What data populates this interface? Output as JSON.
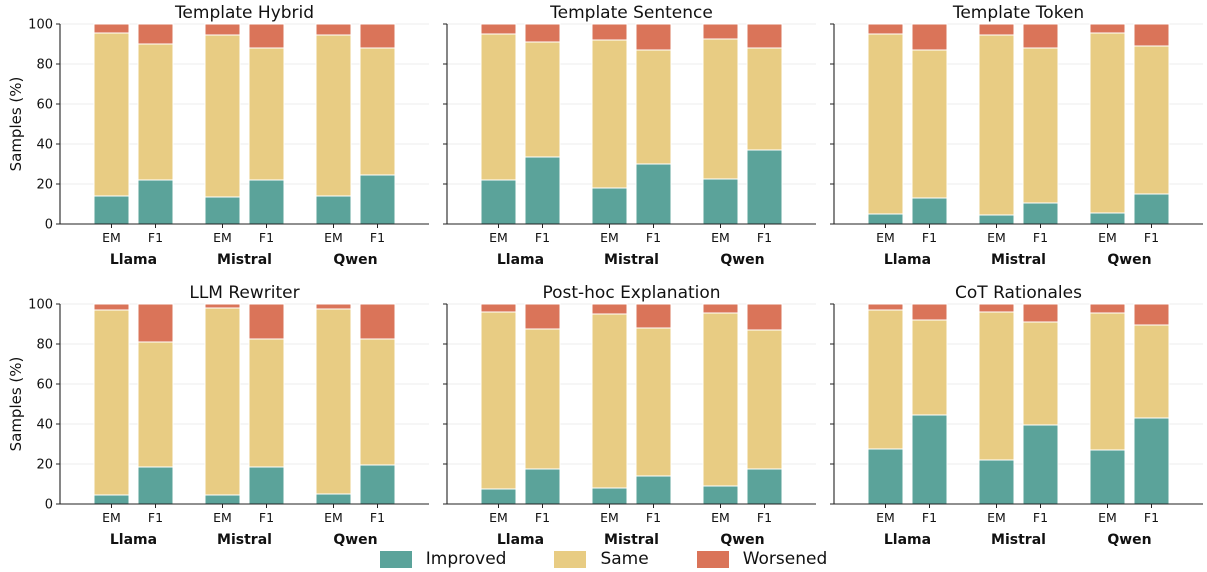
{
  "chart_data": {
    "type": "bar",
    "stacked": true,
    "ylabel": "Samples (%)",
    "ylim": [
      0,
      100
    ],
    "yticks": [
      0,
      20,
      40,
      60,
      80,
      100
    ],
    "grid": "horizontal",
    "legend_position": "bottom-center",
    "series": [
      {
        "name": "Improved",
        "color": "#5ba39a"
      },
      {
        "name": "Same",
        "color": "#e8cc83"
      },
      {
        "name": "Worsened",
        "color": "#da7459"
      }
    ],
    "panels": [
      {
        "title": "Template Hybrid",
        "groups": [
          {
            "model": "Llama",
            "bars": [
              {
                "metric": "EM",
                "values": [
                  14,
                  81.5,
                  4.5
                ]
              },
              {
                "metric": "F1",
                "values": [
                  22,
                  68,
                  10
                ]
              }
            ]
          },
          {
            "model": "Mistral",
            "bars": [
              {
                "metric": "EM",
                "values": [
                  13.5,
                  81,
                  5.5
                ]
              },
              {
                "metric": "F1",
                "values": [
                  22,
                  66,
                  12
                ]
              }
            ]
          },
          {
            "model": "Qwen",
            "bars": [
              {
                "metric": "EM",
                "values": [
                  14,
                  80.5,
                  5.5
                ]
              },
              {
                "metric": "F1",
                "values": [
                  24.5,
                  63.5,
                  12
                ]
              }
            ]
          }
        ]
      },
      {
        "title": "Template Sentence",
        "groups": [
          {
            "model": "Llama",
            "bars": [
              {
                "metric": "EM",
                "values": [
                  22,
                  73,
                  5
                ]
              },
              {
                "metric": "F1",
                "values": [
                  33.5,
                  57.5,
                  9
                ]
              }
            ]
          },
          {
            "model": "Mistral",
            "bars": [
              {
                "metric": "EM",
                "values": [
                  18,
                  74,
                  8
                ]
              },
              {
                "metric": "F1",
                "values": [
                  30,
                  57,
                  13
                ]
              }
            ]
          },
          {
            "model": "Qwen",
            "bars": [
              {
                "metric": "EM",
                "values": [
                  22.5,
                  70,
                  7.5
                ]
              },
              {
                "metric": "F1",
                "values": [
                  37,
                  51,
                  12
                ]
              }
            ]
          }
        ]
      },
      {
        "title": "Template Token",
        "groups": [
          {
            "model": "Llama",
            "bars": [
              {
                "metric": "EM",
                "values": [
                  5,
                  90,
                  5
                ]
              },
              {
                "metric": "F1",
                "values": [
                  13,
                  74,
                  13
                ]
              }
            ]
          },
          {
            "model": "Mistral",
            "bars": [
              {
                "metric": "EM",
                "values": [
                  4.5,
                  90,
                  5.5
                ]
              },
              {
                "metric": "F1",
                "values": [
                  10.5,
                  77.5,
                  12
                ]
              }
            ]
          },
          {
            "model": "Qwen",
            "bars": [
              {
                "metric": "EM",
                "values": [
                  5.5,
                  90,
                  4.5
                ]
              },
              {
                "metric": "F1",
                "values": [
                  15,
                  74,
                  11
                ]
              }
            ]
          }
        ]
      },
      {
        "title": "LLM Rewriter",
        "groups": [
          {
            "model": "Llama",
            "bars": [
              {
                "metric": "EM",
                "values": [
                  4.5,
                  92.5,
                  3
                ]
              },
              {
                "metric": "F1",
                "values": [
                  18.5,
                  62.5,
                  19
                ]
              }
            ]
          },
          {
            "model": "Mistral",
            "bars": [
              {
                "metric": "EM",
                "values": [
                  4.5,
                  93.5,
                  2
                ]
              },
              {
                "metric": "F1",
                "values": [
                  18.5,
                  64,
                  17.5
                ]
              }
            ]
          },
          {
            "model": "Qwen",
            "bars": [
              {
                "metric": "EM",
                "values": [
                  5,
                  92.5,
                  2.5
                ]
              },
              {
                "metric": "F1",
                "values": [
                  19.5,
                  63,
                  17.5
                ]
              }
            ]
          }
        ]
      },
      {
        "title": "Post-hoc Explanation",
        "groups": [
          {
            "model": "Llama",
            "bars": [
              {
                "metric": "EM",
                "values": [
                  7.5,
                  88.5,
                  4
                ]
              },
              {
                "metric": "F1",
                "values": [
                  17.5,
                  70,
                  12.5
                ]
              }
            ]
          },
          {
            "model": "Mistral",
            "bars": [
              {
                "metric": "EM",
                "values": [
                  8,
                  87,
                  5
                ]
              },
              {
                "metric": "F1",
                "values": [
                  14,
                  74,
                  12
                ]
              }
            ]
          },
          {
            "model": "Qwen",
            "bars": [
              {
                "metric": "EM",
                "values": [
                  9,
                  86.5,
                  4.5
                ]
              },
              {
                "metric": "F1",
                "values": [
                  17.5,
                  69.5,
                  13
                ]
              }
            ]
          }
        ]
      },
      {
        "title": "CoT Rationales",
        "groups": [
          {
            "model": "Llama",
            "bars": [
              {
                "metric": "EM",
                "values": [
                  27.5,
                  69.5,
                  3
                ]
              },
              {
                "metric": "F1",
                "values": [
                  44.5,
                  47.5,
                  8
                ]
              }
            ]
          },
          {
            "model": "Mistral",
            "bars": [
              {
                "metric": "EM",
                "values": [
                  22,
                  74,
                  4
                ]
              },
              {
                "metric": "F1",
                "values": [
                  39.5,
                  51.5,
                  9
                ]
              }
            ]
          },
          {
            "model": "Qwen",
            "bars": [
              {
                "metric": "EM",
                "values": [
                  27,
                  68.5,
                  4.5
                ]
              },
              {
                "metric": "F1",
                "values": [
                  43,
                  46.5,
                  10.5
                ]
              }
            ]
          }
        ]
      }
    ]
  }
}
